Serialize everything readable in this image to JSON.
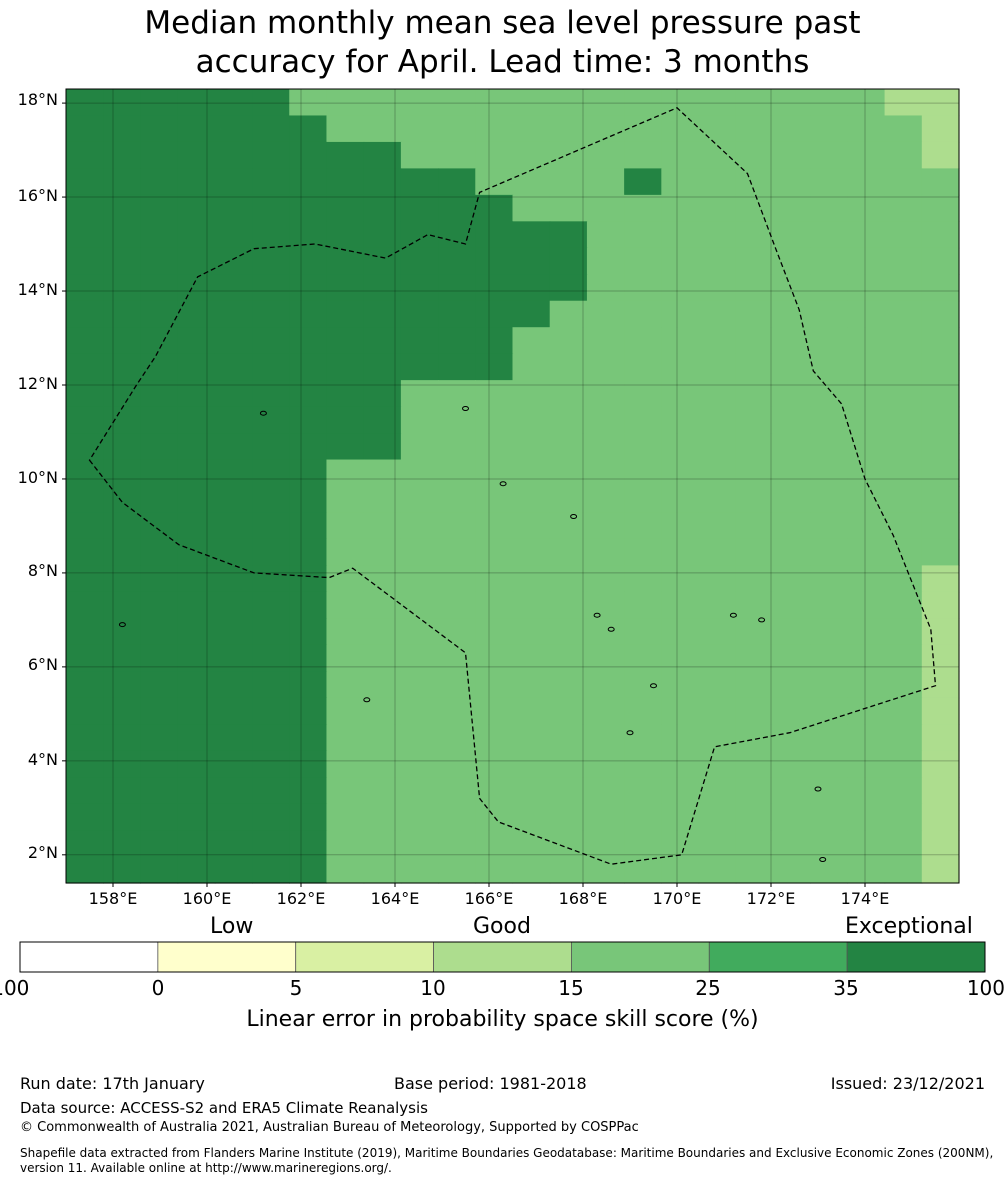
{
  "title": {
    "line1": "Median monthly mean sea level pressure past",
    "line2": "accuracy for April. Lead time: 3 months"
  },
  "map": {
    "lat_labels": [
      "18°N",
      "16°N",
      "14°N",
      "12°N",
      "10°N",
      "8°N",
      "6°N",
      "4°N",
      "2°N"
    ],
    "lat_values": [
      18,
      16,
      14,
      12,
      10,
      8,
      6,
      4,
      2
    ],
    "lon_labels": [
      "158°E",
      "160°E",
      "162°E",
      "164°E",
      "166°E",
      "168°E",
      "170°E",
      "172°E",
      "174°E"
    ],
    "lon_values": [
      158,
      160,
      162,
      164,
      166,
      168,
      170,
      172,
      174
    ],
    "extent": {
      "lon_min": 157,
      "lon_max": 176,
      "lat_min": 1.4,
      "lat_max": 18.3
    },
    "eez_boundary": [
      [
        157.5,
        10.4
      ],
      [
        158.2,
        9.5
      ],
      [
        159.4,
        8.6
      ],
      [
        161,
        8
      ],
      [
        162.6,
        7.9
      ],
      [
        163.1,
        8.1
      ],
      [
        164.3,
        7.2
      ],
      [
        165.5,
        6.3
      ],
      [
        165.8,
        3.2
      ],
      [
        166.2,
        2.7
      ],
      [
        168.6,
        1.8
      ],
      [
        170.1,
        2
      ],
      [
        170.8,
        4.3
      ],
      [
        172.4,
        4.6
      ],
      [
        175.5,
        5.6
      ],
      [
        175.4,
        6.8
      ],
      [
        174.6,
        8.8
      ],
      [
        174,
        10
      ],
      [
        173.5,
        11.6
      ],
      [
        172.9,
        12.3
      ],
      [
        172.6,
        13.6
      ],
      [
        172.1,
        14.9
      ],
      [
        171.5,
        16.5
      ],
      [
        170,
        17.9
      ],
      [
        165.8,
        16.1
      ],
      [
        165.5,
        15
      ],
      [
        164.7,
        15.2
      ],
      [
        163.8,
        14.7
      ],
      [
        162.3,
        15
      ],
      [
        161,
        14.9
      ],
      [
        159.8,
        14.3
      ],
      [
        158.9,
        12.6
      ],
      [
        158.5,
        12
      ]
    ],
    "islands": [
      [
        158.2,
        6.9
      ],
      [
        163.4,
        5.3
      ],
      [
        167.8,
        9.2
      ],
      [
        168.3,
        7.1
      ],
      [
        169.5,
        5.6
      ],
      [
        171.2,
        7.1
      ],
      [
        171.8,
        7.0
      ],
      [
        173.0,
        3.4
      ],
      [
        173.1,
        1.9
      ],
      [
        169.0,
        4.6
      ],
      [
        168.6,
        6.8
      ],
      [
        166.3,
        9.9
      ],
      [
        161.2,
        11.4
      ],
      [
        165.5,
        11.5
      ]
    ],
    "colors": {
      "c1": "#ffffcc",
      "c2": "#d9f0a3",
      "c3": "#addd8e",
      "c4": "#78c679",
      "c5": "#41ab5d",
      "c6": "#238443"
    },
    "grid": [
      "666666444444444444444433",
      "666666644444444444444443",
      "666666666444444444444443",
      "666666666664444644444444",
      "666666666666444444444444",
      "666666666666664444444444",
      "666666666666664444444444",
      "666666666666664444444444",
      "666666666666644444444444",
      "666666666666444444444444",
      "666666666666444444444444",
      "666666666444444444444444",
      "666666666444444444444444",
      "666666666444444444444444",
      "666666644444444444444444",
      "666666644444444444444444",
      "666666644444444444444444",
      "666666644444444444444444",
      "666666644444444444444443",
      "666666644444444444444443",
      "666666644444444444444443",
      "666666644444444444444443",
      "666666644444444444444443",
      "666666644444444444444443",
      "666666644444444444444443",
      "666666644444444444444443",
      "666666644444444444444443",
      "666666644444444444444443",
      "666666644444444444444443",
      "666666644444444444444443"
    ]
  },
  "colorbar": {
    "categories": {
      "low": "Low",
      "good": "Good",
      "exceptional": "Exceptional"
    },
    "ticks": [
      "-100",
      "0",
      "5",
      "10",
      "15",
      "25",
      "35",
      "100"
    ],
    "segment_colors": [
      "#ffffff",
      "#ffffcc",
      "#d9f0a3",
      "#addd8e",
      "#78c679",
      "#41ab5d",
      "#238443"
    ],
    "title": "Linear error in probability space skill score (%)"
  },
  "footer": {
    "run_date": "Run date: 17th January",
    "base_period": "Base period: 1981-2018",
    "issued": "Issued: 23/12/2021",
    "data_source": "Data source: ACCESS-S2 and ERA5 Climate Reanalysis",
    "copyright": "© Commonwealth of Australia 2021, Australian Bureau of Meteorology, Supported by COSPPac",
    "shapefile": "Shapefile data extracted from Flanders Marine Institute (2019), Maritime Boundaries Geodatabase: Maritime Boundaries and Exclusive Economic Zones (200NM), version 11. Available online at http://www.marineregions.org/."
  }
}
